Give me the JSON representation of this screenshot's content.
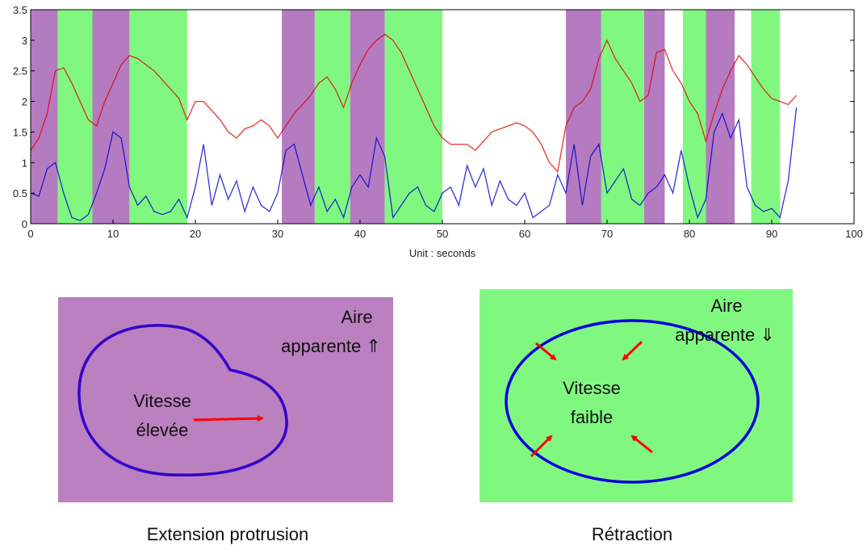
{
  "chart_data": {
    "type": "line",
    "x_label": "Unit : seconds",
    "x": [
      0,
      1,
      2,
      3,
      4,
      5,
      6,
      7,
      8,
      9,
      10,
      11,
      12,
      13,
      14,
      15,
      16,
      17,
      18,
      19,
      20,
      21,
      22,
      23,
      24,
      25,
      26,
      27,
      28,
      29,
      30,
      31,
      32,
      33,
      34,
      35,
      36,
      37,
      38,
      39,
      40,
      41,
      42,
      43,
      44,
      45,
      46,
      47,
      48,
      49,
      50,
      51,
      52,
      53,
      54,
      55,
      56,
      57,
      58,
      59,
      60,
      61,
      62,
      63,
      64,
      65,
      66,
      67,
      68,
      69,
      70,
      71,
      72,
      73,
      74,
      75,
      76,
      77,
      78,
      79,
      80,
      81,
      82,
      83,
      84,
      85,
      86,
      87,
      88,
      89,
      90,
      91,
      92,
      93
    ],
    "series": [
      {
        "color": "#e00000",
        "values": [
          1.2,
          1.4,
          1.8,
          2.5,
          2.55,
          2.3,
          2.0,
          1.7,
          1.6,
          2.0,
          2.3,
          2.6,
          2.75,
          2.7,
          2.6,
          2.5,
          2.35,
          2.2,
          2.05,
          1.7,
          2.0,
          2.0,
          1.85,
          1.7,
          1.5,
          1.4,
          1.55,
          1.6,
          1.7,
          1.6,
          1.4,
          1.6,
          1.8,
          1.95,
          2.1,
          2.3,
          2.4,
          2.2,
          1.9,
          2.3,
          2.6,
          2.85,
          3.0,
          3.1,
          3.0,
          2.8,
          2.5,
          2.2,
          1.9,
          1.6,
          1.4,
          1.3,
          1.3,
          1.3,
          1.2,
          1.35,
          1.5,
          1.55,
          1.6,
          1.65,
          1.6,
          1.5,
          1.3,
          1.0,
          0.85,
          1.6,
          1.9,
          2.0,
          2.2,
          2.7,
          3.0,
          2.7,
          2.5,
          2.3,
          2.0,
          2.1,
          2.8,
          2.85,
          2.5,
          2.3,
          2.0,
          1.8,
          1.35,
          1.8,
          2.2,
          2.5,
          2.75,
          2.6,
          2.4,
          2.2,
          2.05,
          2.0,
          1.95,
          2.1
        ]
      },
      {
        "color": "#0000d0",
        "values": [
          0.5,
          0.45,
          0.9,
          1.0,
          0.5,
          0.1,
          0.05,
          0.15,
          0.5,
          0.9,
          1.5,
          1.4,
          0.6,
          0.3,
          0.45,
          0.2,
          0.15,
          0.2,
          0.4,
          0.1,
          0.6,
          1.3,
          0.3,
          0.8,
          0.4,
          0.7,
          0.2,
          0.6,
          0.3,
          0.2,
          0.5,
          1.2,
          1.3,
          0.8,
          0.3,
          0.6,
          0.2,
          0.4,
          0.1,
          0.6,
          0.8,
          0.6,
          1.4,
          1.1,
          0.1,
          0.3,
          0.5,
          0.6,
          0.3,
          0.2,
          0.5,
          0.6,
          0.3,
          0.95,
          0.6,
          0.9,
          0.3,
          0.7,
          0.4,
          0.3,
          0.5,
          0.1,
          0.2,
          0.3,
          0.8,
          0.5,
          1.3,
          0.3,
          1.1,
          1.3,
          0.5,
          0.7,
          0.9,
          0.4,
          0.3,
          0.5,
          0.6,
          0.8,
          0.5,
          1.2,
          0.6,
          0.1,
          0.4,
          1.5,
          1.8,
          1.4,
          1.7,
          0.6,
          0.3,
          0.2,
          0.25,
          0.1,
          0.7,
          1.9
        ]
      }
    ],
    "bands": [
      {
        "x0": 0,
        "x1": 3.3,
        "color": "#b57bc0"
      },
      {
        "x0": 3.3,
        "x1": 7.5,
        "color": "#80f880"
      },
      {
        "x0": 7.5,
        "x1": 12,
        "color": "#b57bc0"
      },
      {
        "x0": 12,
        "x1": 19,
        "color": "#80f880"
      },
      {
        "x0": 30.5,
        "x1": 34.5,
        "color": "#b57bc0"
      },
      {
        "x0": 34.5,
        "x1": 38.8,
        "color": "#80f880"
      },
      {
        "x0": 38.8,
        "x1": 43,
        "color": "#b57bc0"
      },
      {
        "x0": 43,
        "x1": 50,
        "color": "#80f880"
      },
      {
        "x0": 65,
        "x1": 69.3,
        "color": "#b57bc0"
      },
      {
        "x0": 69.3,
        "x1": 74.5,
        "color": "#80f880"
      },
      {
        "x0": 74.5,
        "x1": 77,
        "color": "#b57bc0"
      },
      {
        "x0": 79.2,
        "x1": 82,
        "color": "#80f880"
      },
      {
        "x0": 82,
        "x1": 85.5,
        "color": "#b57bc0"
      },
      {
        "x0": 87.5,
        "x1": 91,
        "color": "#80f880"
      }
    ],
    "xlim": [
      0,
      100
    ],
    "xticks": [
      0,
      10,
      20,
      30,
      40,
      50,
      60,
      70,
      80,
      90,
      100
    ],
    "ylim": [
      0,
      3.5
    ],
    "yticks": [
      0,
      0.5,
      1,
      1.5,
      2,
      2.5,
      3,
      3.5
    ]
  },
  "diagrams": [
    {
      "caption": "Extension protrusion",
      "area_line1": "Aire",
      "area_line2": "apparente ⇑",
      "speed_line1": "Vitesse",
      "speed_line2": "élevée"
    },
    {
      "caption": "Rétraction",
      "area_line1": "Aire",
      "area_line2": "apparente ⇓",
      "speed_line1": "Vitesse",
      "speed_line2": "faible"
    }
  ]
}
